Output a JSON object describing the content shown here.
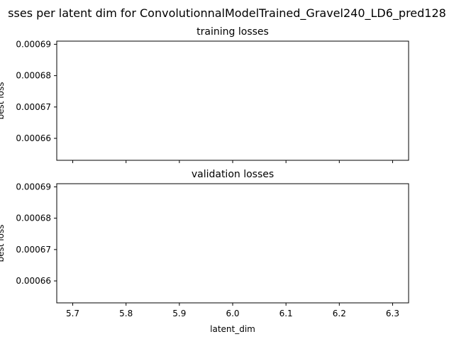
{
  "suptitle": "sses per latent dim for ConvolutionnalModelTrained_Gravel240_LD6_pred128",
  "chart_data": [
    {
      "type": "scatter",
      "title": "training losses",
      "xlabel": "",
      "ylabel": "best loss",
      "xlim": [
        5.67,
        6.33
      ],
      "ylim": [
        0.000653,
        0.000691
      ],
      "x_ticks": [
        5.7,
        5.8,
        5.9,
        6.0,
        6.1,
        6.2,
        6.3
      ],
      "x_tick_labels": [],
      "y_ticks": [
        0.00066,
        0.00067,
        0.00068,
        0.00069
      ],
      "y_tick_labels": [
        "0.00066",
        "0.00067",
        "0.00068",
        "0.00069"
      ],
      "grid": false,
      "series": []
    },
    {
      "type": "scatter",
      "title": "validation losses",
      "xlabel": "latent_dim",
      "ylabel": "best loss",
      "xlim": [
        5.67,
        6.33
      ],
      "ylim": [
        0.000653,
        0.000691
      ],
      "x_ticks": [
        5.7,
        5.8,
        5.9,
        6.0,
        6.1,
        6.2,
        6.3
      ],
      "x_tick_labels": [
        "5.7",
        "5.8",
        "5.9",
        "6.0",
        "6.1",
        "6.2",
        "6.3"
      ],
      "y_ticks": [
        0.00066,
        0.00067,
        0.00068,
        0.00069
      ],
      "y_tick_labels": [
        "0.00066",
        "0.00067",
        "0.00068",
        "0.00069"
      ],
      "grid": false,
      "series": []
    }
  ]
}
